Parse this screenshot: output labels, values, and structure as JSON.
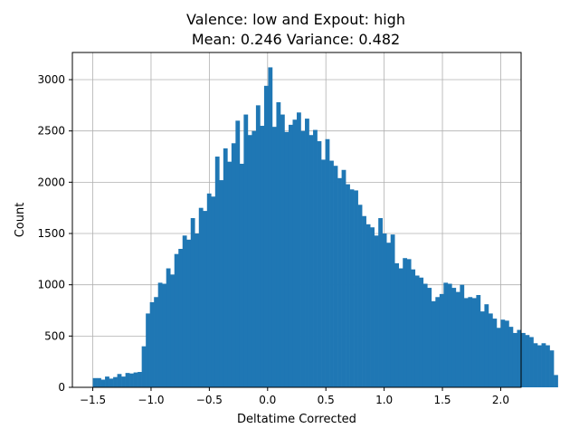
{
  "chart_data": {
    "type": "bar",
    "title_line1": "Valence: low and Expout: high",
    "title_line2": "Mean: 0.246 Variance: 0.482",
    "xlabel": "Deltatime Corrected",
    "ylabel": "Count",
    "xlim": [
      -1.675,
      2.175
    ],
    "ylim": [
      0,
      3265
    ],
    "xticks": [
      -1.5,
      -1.0,
      -0.5,
      0.0,
      0.5,
      1.0,
      1.5,
      2.0
    ],
    "xtick_labels": [
      "−1.5",
      "−1.0",
      "−0.5",
      "0.0",
      "0.5",
      "1.0",
      "1.5",
      "2.0"
    ],
    "yticks": [
      0,
      500,
      1000,
      1500,
      2000,
      2500,
      3000
    ],
    "ytick_labels": [
      "0",
      "500",
      "1000",
      "1500",
      "2000",
      "2500",
      "3000"
    ],
    "grid": true,
    "bar_color": "#1f77b4",
    "bin_start": -1.5,
    "bin_width": 0.035,
    "values": [
      90,
      90,
      75,
      105,
      85,
      100,
      130,
      105,
      140,
      135,
      145,
      150,
      400,
      720,
      830,
      880,
      1020,
      1010,
      1160,
      1100,
      1300,
      1350,
      1480,
      1440,
      1650,
      1500,
      1750,
      1720,
      1890,
      1860,
      2250,
      2020,
      2330,
      2200,
      2380,
      2600,
      2180,
      2660,
      2460,
      2500,
      2750,
      2550,
      2940,
      3120,
      2540,
      2780,
      2660,
      2490,
      2560,
      2610,
      2680,
      2500,
      2620,
      2460,
      2510,
      2400,
      2220,
      2420,
      2210,
      2160,
      2040,
      2120,
      1980,
      1930,
      1920,
      1780,
      1670,
      1590,
      1560,
      1480,
      1650,
      1500,
      1410,
      1490,
      1210,
      1160,
      1260,
      1250,
      1150,
      1090,
      1070,
      1010,
      970,
      840,
      880,
      910,
      1020,
      1010,
      970,
      930,
      1000,
      870,
      880,
      870,
      900,
      740,
      810,
      720,
      670,
      580,
      660,
      650,
      590,
      530,
      560,
      530,
      510,
      490,
      430,
      410,
      430,
      410,
      360,
      120
    ]
  }
}
